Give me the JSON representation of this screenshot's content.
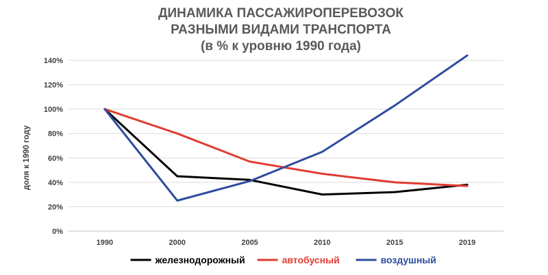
{
  "chart_data": {
    "type": "line",
    "title_lines": [
      "ДИНАМИКА ПАССАЖИРОПЕРЕВОЗОК",
      "РАЗНЫМИ ВИДАМИ ТРАНСПОРТА",
      "(в % к уровню 1990 года)"
    ],
    "ylabel": "доля к 1990 году",
    "xlabel": "",
    "categories": [
      "1990",
      "2000",
      "2005",
      "2010",
      "2015",
      "2019"
    ],
    "yticks": [
      "0%",
      "20%",
      "40%",
      "60%",
      "80%",
      "100%",
      "120%",
      "140%"
    ],
    "ylim": [
      0,
      150
    ],
    "grid": true,
    "legend_position": "bottom",
    "series": [
      {
        "name": "железнодорожный",
        "color": "#000000",
        "values": [
          100,
          45,
          42,
          30,
          32,
          38
        ]
      },
      {
        "name": "автобусный",
        "color": "#e03c31",
        "values": [
          100,
          80,
          57,
          47,
          40,
          37
        ]
      },
      {
        "name": "воздушный",
        "color": "#2e4c9e",
        "values": [
          100,
          25,
          41,
          65,
          103,
          144
        ]
      }
    ]
  }
}
